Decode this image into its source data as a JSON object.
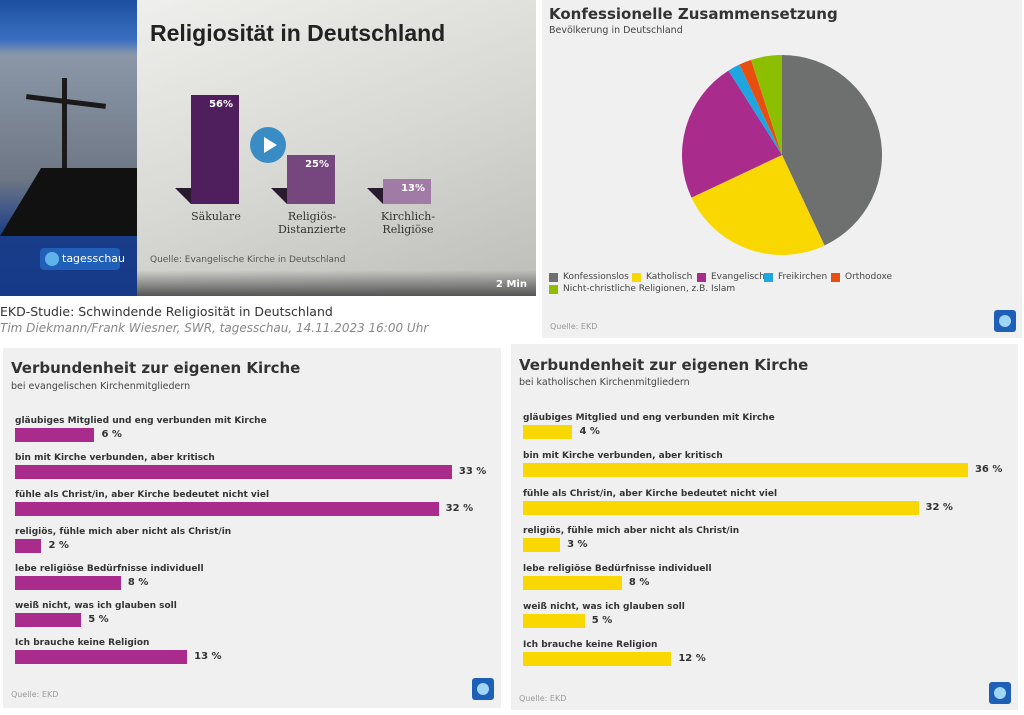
{
  "video": {
    "channel_logo": "tagesschau",
    "duration": "2 Min",
    "caption_title": "EKD-Studie: Schwindende Religiosität in Deutschland",
    "caption_meta": "Tim Diekmann/Frank Wiesner, SWR, tagesschau, 14.11.2023 16:00 Uhr",
    "play_icon": "play-icon"
  },
  "chart_data": [
    {
      "type": "bar",
      "title": "Religiosität in Deutschland",
      "categories": [
        "Säkulare",
        "Religiös-\nDistanzierte",
        "Kirchlich-\nReligiöse"
      ],
      "values": [
        56,
        25,
        13
      ],
      "value_labels": [
        "56%",
        "25%",
        "13%"
      ],
      "colors": [
        "#4e1f5c",
        "#76477f",
        "#a17aa6"
      ],
      "source": "Quelle: Evangelische Kirche in Deutschland"
    },
    {
      "type": "pie",
      "title": "Konfessionelle Zusammensetzung",
      "subtitle": "Bevölkerung in Deutschland",
      "categories": [
        "Konfessionslos",
        "Katholisch",
        "Evangelisch",
        "Freikirchen",
        "Orthodoxe",
        "Nicht-christliche Religionen, z.B. Islam"
      ],
      "values": [
        43,
        25,
        23,
        2,
        2,
        5
      ],
      "colors": [
        "#6e7070",
        "#f8d800",
        "#a92c8c",
        "#1ea6e0",
        "#e84e10",
        "#8cbf00"
      ],
      "legend": "bottom",
      "source": "Quelle: EKD"
    },
    {
      "type": "bar",
      "orientation": "horizontal",
      "title": "Verbundenheit zur eigenen Kirche",
      "subtitle": "bei evangelischen Kirchenmitgliedern",
      "categories": [
        "gläubiges Mitglied und eng verbunden mit Kirche",
        "bin mit Kirche verbunden, aber kritisch",
        "fühle als Christ/in, aber Kirche bedeutet nicht viel",
        "religiös, fühle mich aber nicht als Christ/in",
        "lebe religiöse Bedürfnisse individuell",
        "weiß nicht, was ich glauben soll",
        "Ich brauche keine Religion"
      ],
      "values": [
        6,
        33,
        32,
        2,
        8,
        5,
        13
      ],
      "value_labels": [
        "6 %",
        "33 %",
        "32 %",
        "2 %",
        "8 %",
        "5 %",
        "13 %"
      ],
      "color": "#a92c8c",
      "source": "Quelle: EKD"
    },
    {
      "type": "bar",
      "orientation": "horizontal",
      "title": "Verbundenheit zur eigenen Kirche",
      "subtitle": "bei katholischen Kirchenmitgliedern",
      "categories": [
        "gläubiges Mitglied und eng verbunden mit Kirche",
        "bin mit Kirche verbunden, aber kritisch",
        "fühle als Christ/in, aber Kirche bedeutet nicht viel",
        "religiös, fühle mich aber nicht als Christ/in",
        "lebe religiöse Bedürfnisse individuell",
        "weiß nicht, was ich glauben soll",
        "Ich brauche keine Religion"
      ],
      "values": [
        4,
        36,
        32,
        3,
        8,
        5,
        12
      ],
      "value_labels": [
        "4 %",
        "36 %",
        "32 %",
        "3 %",
        "8 %",
        "5 %",
        "12 %"
      ],
      "color": "#f8d800",
      "source": "Quelle: EKD"
    }
  ]
}
